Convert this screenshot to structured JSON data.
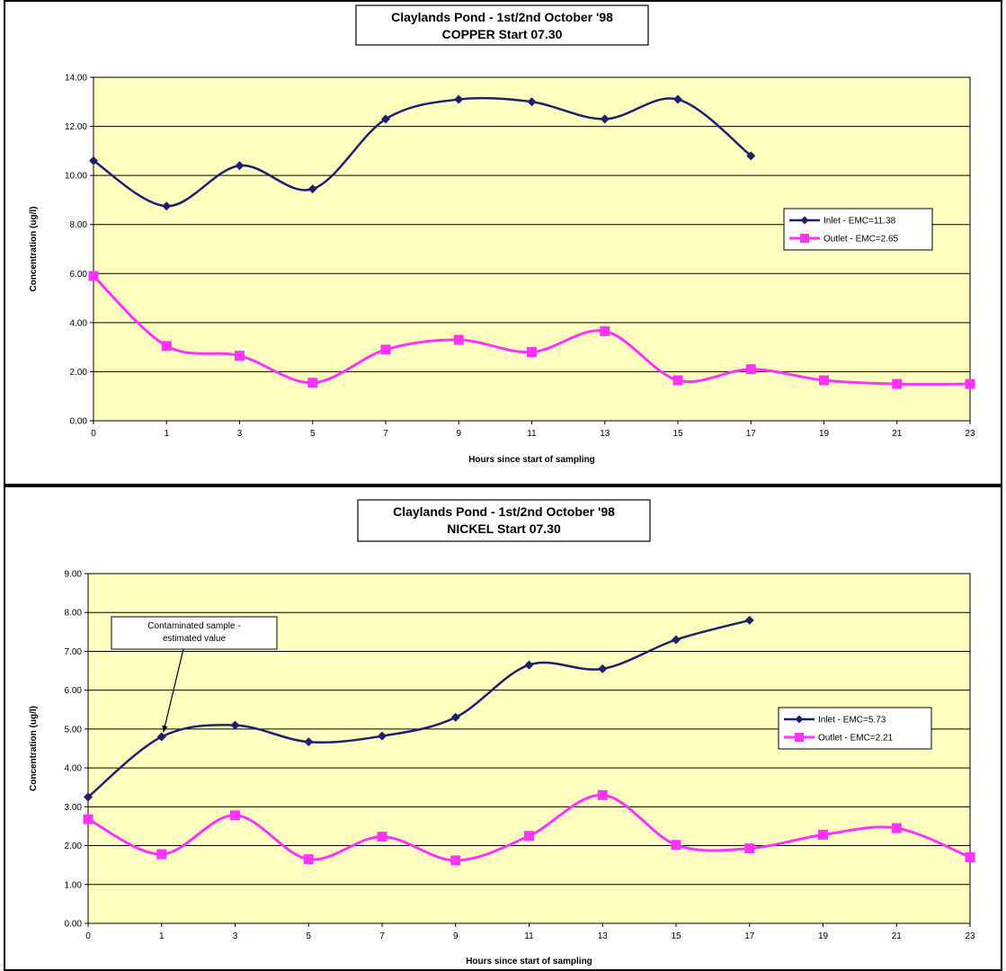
{
  "chart_data": [
    {
      "id": "copper",
      "type": "line",
      "title": "Claylands Pond - 1st/2nd October '98",
      "subtitle": "COPPER Start 07.30",
      "xlabel": "Hours since start of sampling",
      "ylabel": "Concentration (ug/l)",
      "categories": [
        "0",
        "1",
        "3",
        "5",
        "7",
        "9",
        "11",
        "13",
        "15",
        "17",
        "19",
        "21",
        "23"
      ],
      "ylim": [
        0,
        14
      ],
      "yticks": [
        "0.00",
        "2.00",
        "4.00",
        "6.00",
        "8.00",
        "10.00",
        "12.00",
        "14.00"
      ],
      "grid": true,
      "legend_position": "right",
      "series": [
        {
          "name": "Inlet - EMC=11.38",
          "color": "#1f1f6e",
          "marker": "diamond",
          "values": [
            10.6,
            8.75,
            10.4,
            9.45,
            12.3,
            13.1,
            13.0,
            12.3,
            13.1,
            10.8,
            null,
            null,
            null
          ]
        },
        {
          "name": "Outlet - EMC=2.65",
          "color": "#ff33ff",
          "marker": "square",
          "values": [
            5.9,
            3.05,
            2.65,
            1.55,
            2.9,
            3.3,
            2.8,
            3.65,
            1.65,
            2.1,
            1.65,
            1.5,
            1.5
          ]
        }
      ]
    },
    {
      "id": "nickel",
      "type": "line",
      "title": "Claylands Pond - 1st/2nd October '98",
      "subtitle": "NICKEL Start 07.30",
      "xlabel": "Hours since start of sampling",
      "ylabel": "Concentration (ug/l)",
      "categories": [
        "0",
        "1",
        "3",
        "5",
        "7",
        "9",
        "11",
        "13",
        "15",
        "17",
        "19",
        "21",
        "23"
      ],
      "ylim": [
        0,
        9
      ],
      "yticks": [
        "0.00",
        "1.00",
        "2.00",
        "3.00",
        "4.00",
        "5.00",
        "6.00",
        "7.00",
        "8.00",
        "9.00"
      ],
      "grid": true,
      "legend_position": "right",
      "annotation": {
        "lines": [
          "Contaminated sample -",
          "estimated value"
        ],
        "target_index": 1,
        "target_value": 4.8
      },
      "series": [
        {
          "name": "Inlet - EMC=5.73",
          "color": "#1f1f6e",
          "marker": "diamond",
          "values": [
            3.25,
            4.8,
            5.1,
            4.67,
            4.82,
            5.3,
            6.65,
            6.55,
            7.3,
            7.8,
            null,
            null,
            null
          ]
        },
        {
          "name": "Outlet - EMC=2.21",
          "color": "#ff33ff",
          "marker": "square",
          "values": [
            2.68,
            1.78,
            2.78,
            1.65,
            2.23,
            1.62,
            2.25,
            3.3,
            2.02,
            1.93,
            2.28,
            2.45,
            1.7
          ]
        }
      ]
    }
  ]
}
